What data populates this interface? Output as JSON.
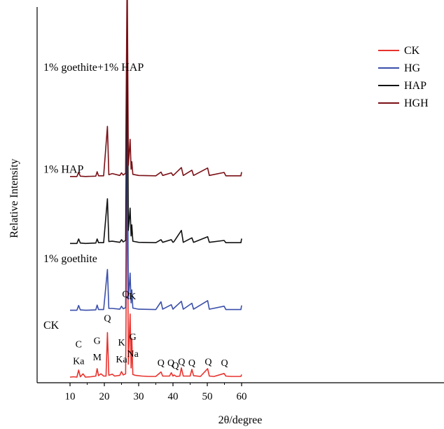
{
  "chart_data": {
    "type": "line",
    "xlabel": "2θ/degree",
    "ylabel": "Relative Intensity",
    "xlim": [
      5,
      64
    ],
    "xticks": [
      10,
      20,
      30,
      40,
      50,
      60
    ],
    "ylim": [
      0,
      100
    ],
    "legend": {
      "placement": "top-right",
      "entries": [
        "CK",
        "HG",
        "HAP",
        "HGH"
      ]
    },
    "series": [
      {
        "name": "CK",
        "color": "#e8322d",
        "offset": 0,
        "curve_label": "CK",
        "points": [
          [
            10,
            1.5
          ],
          [
            11,
            1.6
          ],
          [
            12.0,
            1.5
          ],
          [
            12.5,
            3.4
          ],
          [
            13,
            1.6
          ],
          [
            13.8,
            2.4
          ],
          [
            14.5,
            1.5
          ],
          [
            16,
            1.6
          ],
          [
            17.5,
            1.8
          ],
          [
            17.9,
            3.8
          ],
          [
            18.3,
            1.9
          ],
          [
            19,
            2.4
          ],
          [
            19.8,
            1.8
          ],
          [
            20.5,
            1.8
          ],
          [
            20.9,
            13.5
          ],
          [
            21.3,
            2.0
          ],
          [
            22.3,
            2.3
          ],
          [
            23,
            1.8
          ],
          [
            24.5,
            2.0
          ],
          [
            25.0,
            3.0
          ],
          [
            25.5,
            2.1
          ],
          [
            26.2,
            2.4
          ],
          [
            26.65,
            58.0
          ],
          [
            27.0,
            5.0
          ],
          [
            27.5,
            18.5
          ],
          [
            27.8,
            4.0
          ],
          [
            28.0,
            12.0
          ],
          [
            28.3,
            2.2
          ],
          [
            29,
            2.0
          ],
          [
            31,
            1.8
          ],
          [
            33,
            1.7
          ],
          [
            35,
            1.7
          ],
          [
            36.5,
            2.9
          ],
          [
            37,
            1.8
          ],
          [
            39,
            1.8
          ],
          [
            39.5,
            2.7
          ],
          [
            40,
            1.8
          ],
          [
            40.3,
            2.1
          ],
          [
            41,
            1.7
          ],
          [
            42.0,
            1.8
          ],
          [
            42.45,
            4.0
          ],
          [
            43,
            1.8
          ],
          [
            45,
            1.8
          ],
          [
            45.5,
            3.6
          ],
          [
            46,
            1.9
          ],
          [
            48,
            1.7
          ],
          [
            50.1,
            3.8
          ],
          [
            50.6,
            1.8
          ],
          [
            52,
            1.7
          ],
          [
            54.9,
            2.5
          ],
          [
            55.4,
            1.8
          ],
          [
            57,
            1.7
          ],
          [
            59.8,
            1.7
          ],
          [
            60,
            2.2
          ]
        ]
      },
      {
        "name": "HG",
        "color": "#3a4faa",
        "offset": 18,
        "curve_label": "1% goethite",
        "points": [
          [
            10,
            1.5
          ],
          [
            12.0,
            1.5
          ],
          [
            12.5,
            2.8
          ],
          [
            13,
            1.6
          ],
          [
            14.5,
            1.5
          ],
          [
            17.5,
            1.6
          ],
          [
            17.9,
            2.9
          ],
          [
            18.3,
            1.7
          ],
          [
            19.8,
            1.7
          ],
          [
            20.9,
            12.5
          ],
          [
            21.3,
            2.0
          ],
          [
            22.3,
            2.0
          ],
          [
            24.5,
            1.8
          ],
          [
            25.0,
            2.6
          ],
          [
            25.5,
            1.9
          ],
          [
            26.2,
            2.2
          ],
          [
            26.65,
            58.0
          ],
          [
            27.0,
            4.5
          ],
          [
            27.5,
            11.5
          ],
          [
            27.8,
            3.5
          ],
          [
            28.0,
            7.0
          ],
          [
            28.3,
            2.1
          ],
          [
            30,
            1.8
          ],
          [
            35,
            1.7
          ],
          [
            36.5,
            3.8
          ],
          [
            37,
            1.8
          ],
          [
            39.5,
            3.0
          ],
          [
            40,
            1.8
          ],
          [
            40.3,
            2.1
          ],
          [
            42.45,
            3.9
          ],
          [
            43,
            1.8
          ],
          [
            45.5,
            3.4
          ],
          [
            46,
            1.8
          ],
          [
            50.1,
            4.1
          ],
          [
            50.6,
            1.8
          ],
          [
            54.9,
            2.6
          ],
          [
            55.4,
            1.7
          ],
          [
            59.8,
            1.7
          ],
          [
            60,
            2.8
          ]
        ]
      },
      {
        "name": "HAP",
        "color": "#111111",
        "offset": 36,
        "curve_label": "1% HAP",
        "points": [
          [
            10,
            1.5
          ],
          [
            12.0,
            1.5
          ],
          [
            12.5,
            2.7
          ],
          [
            13,
            1.6
          ],
          [
            14.5,
            1.5
          ],
          [
            17.5,
            1.6
          ],
          [
            17.9,
            2.7
          ],
          [
            18.3,
            1.7
          ],
          [
            19.8,
            1.7
          ],
          [
            20.9,
            13.5
          ],
          [
            21.3,
            2.0
          ],
          [
            22.3,
            2.1
          ],
          [
            24.5,
            1.8
          ],
          [
            25.0,
            2.5
          ],
          [
            25.5,
            1.9
          ],
          [
            26.2,
            2.3
          ],
          [
            26.65,
            58.5
          ],
          [
            27.0,
            5.0
          ],
          [
            27.5,
            11.0
          ],
          [
            27.8,
            3.5
          ],
          [
            28.0,
            6.5
          ],
          [
            28.3,
            2.1
          ],
          [
            30,
            1.8
          ],
          [
            35,
            1.7
          ],
          [
            36.5,
            2.5
          ],
          [
            37,
            1.8
          ],
          [
            39.5,
            2.5
          ],
          [
            40,
            1.8
          ],
          [
            40.3,
            2.0
          ],
          [
            42.45,
            5.0
          ],
          [
            43,
            1.8
          ],
          [
            45.5,
            3.0
          ],
          [
            46,
            1.8
          ],
          [
            50.1,
            3.3
          ],
          [
            50.6,
            1.8
          ],
          [
            54.9,
            2.3
          ],
          [
            55.4,
            1.7
          ],
          [
            59.8,
            1.7
          ],
          [
            60,
            2.8
          ]
        ]
      },
      {
        "name": "HGH",
        "color": "#7a1016",
        "offset": 54,
        "curve_label": "1% goethite+1% HAP",
        "points": [
          [
            10,
            1.5
          ],
          [
            12.0,
            1.5
          ],
          [
            12.5,
            2.6
          ],
          [
            13,
            1.6
          ],
          [
            14.5,
            1.5
          ],
          [
            17.5,
            1.6
          ],
          [
            17.9,
            2.8
          ],
          [
            18.3,
            1.7
          ],
          [
            19.8,
            1.7
          ],
          [
            20.9,
            15.0
          ],
          [
            21.3,
            2.0
          ],
          [
            22.3,
            2.3
          ],
          [
            24.5,
            1.8
          ],
          [
            25.0,
            2.5
          ],
          [
            25.5,
            1.9
          ],
          [
            26.2,
            2.4
          ],
          [
            26.65,
            58.0
          ],
          [
            27.0,
            4.5
          ],
          [
            27.5,
            11.5
          ],
          [
            27.8,
            3.5
          ],
          [
            28.0,
            5.5
          ],
          [
            28.3,
            2.1
          ],
          [
            30,
            1.8
          ],
          [
            35,
            1.7
          ],
          [
            36.5,
            2.7
          ],
          [
            37,
            1.8
          ],
          [
            39.5,
            2.5
          ],
          [
            40,
            1.8
          ],
          [
            40.3,
            2.0
          ],
          [
            42.45,
            3.9
          ],
          [
            43,
            1.8
          ],
          [
            45.5,
            3.2
          ],
          [
            46,
            1.8
          ],
          [
            50.1,
            3.8
          ],
          [
            50.6,
            1.8
          ],
          [
            54.9,
            2.6
          ],
          [
            55.4,
            1.7
          ],
          [
            59.8,
            1.7
          ],
          [
            60,
            2.7
          ]
        ]
      }
    ],
    "annotations": [
      {
        "text": "C",
        "x": 12.5,
        "y": 9.5
      },
      {
        "text": "Ka",
        "x": 12.5,
        "y": 5.0
      },
      {
        "text": "G",
        "x": 17.9,
        "y": 10.5
      },
      {
        "text": "M",
        "x": 17.9,
        "y": 6.0
      },
      {
        "text": "Q",
        "x": 20.9,
        "y": 16.5
      },
      {
        "text": "K",
        "x": 25.0,
        "y": 10.0
      },
      {
        "text": "Ka",
        "x": 25.0,
        "y": 5.5
      },
      {
        "text": "Q",
        "x": 26.2,
        "y": 23.0
      },
      {
        "text": "K",
        "x": 28.2,
        "y": 22.5
      },
      {
        "text": "G",
        "x": 28.3,
        "y": 11.5
      },
      {
        "text": "Na",
        "x": 28.3,
        "y": 7.0
      },
      {
        "text": "Q",
        "x": 36.5,
        "y": 4.5
      },
      {
        "text": "Q",
        "x": 39.4,
        "y": 4.5
      },
      {
        "text": "Q",
        "x": 40.7,
        "y": 3.8
      },
      {
        "text": "Q",
        "x": 42.5,
        "y": 4.8
      },
      {
        "text": "Q",
        "x": 45.5,
        "y": 4.5
      },
      {
        "text": "Q",
        "x": 50.3,
        "y": 4.8
      },
      {
        "text": "Q",
        "x": 55.0,
        "y": 4.5
      }
    ]
  }
}
